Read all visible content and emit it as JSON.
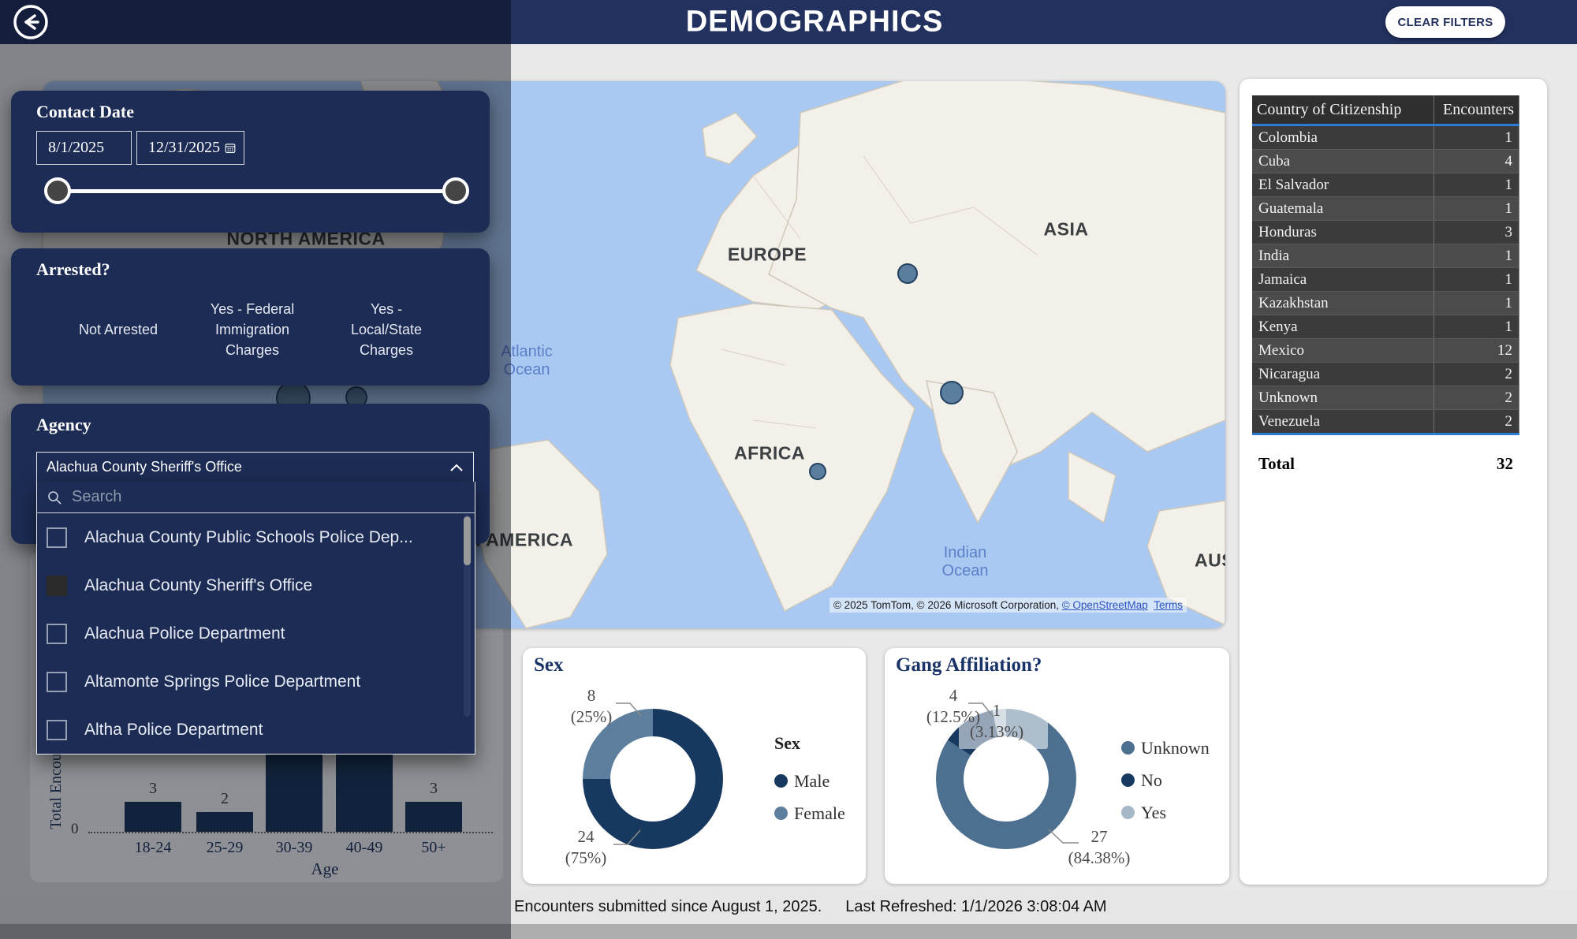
{
  "header": {
    "title": "DEMOGRAPHICS",
    "clear_filters_label": "CLEAR FILTERS"
  },
  "filters": {
    "contact_date": {
      "title": "Contact Date",
      "start": "8/1/2025",
      "end": "12/31/2025"
    },
    "arrested": {
      "title": "Arrested?",
      "options": [
        "Not Arrested",
        "Yes - Federal Immigration Charges",
        "Yes - Local/State Charges"
      ]
    },
    "agency": {
      "title": "Agency",
      "selected": "Alachua County Sheriff's Office",
      "search_placeholder": "Search",
      "options": [
        {
          "label": "Alachua County Public Schools Police Dep...",
          "checked": false
        },
        {
          "label": "Alachua County Sheriff's Office",
          "checked": true
        },
        {
          "label": "Alachua Police Department",
          "checked": false
        },
        {
          "label": "Altamonte Springs Police Department",
          "checked": false
        },
        {
          "label": "Altha Police Department",
          "checked": false
        }
      ]
    }
  },
  "map": {
    "labels": {
      "north_america": "NORTH AMERICA",
      "europe": "EUROPE",
      "asia": "ASIA",
      "africa": "AFRICA",
      "south_america": "SOUTH AMERICA",
      "australia": "AUSTRALIA",
      "atlantic": "Atlantic\nOcean",
      "indian": "Indian\nOcean"
    },
    "bubbles": [
      {
        "area": "central-asia",
        "r": 11,
        "dimmed": false
      },
      {
        "area": "south-asia",
        "r": 13,
        "dimmed": false
      },
      {
        "area": "east-africa",
        "r": 9,
        "dimmed": false
      },
      {
        "area": "americas-1",
        "r": 20,
        "dimmed": true
      },
      {
        "area": "americas-2",
        "r": 12,
        "dimmed": true
      },
      {
        "area": "americas-3",
        "r": 6,
        "dimmed": true
      }
    ],
    "attribution": {
      "text": "© 2025 TomTom, © 2026 Microsoft Corporation, ",
      "osm_link": "© OpenStreetMap",
      "terms_link": "Terms"
    }
  },
  "footer": {
    "status": "Encounters submitted since August 1, 2025.",
    "refreshed": "Last Refreshed: 1/1/2026 3:08:04 AM"
  },
  "colors": {
    "header_navy": "#22315e",
    "card_navy": "#1d2c55",
    "table_accent_blue": "#2e7bd6"
  },
  "chart_data": [
    {
      "id": "age",
      "type": "bar",
      "title": "",
      "xlabel": "Age",
      "ylabel": "Total Encounters",
      "origin_label": "0",
      "categories": [
        "18-24",
        "25-29",
        "30-39",
        "40-49",
        "50+"
      ],
      "values": [
        3,
        2,
        null,
        null,
        3
      ],
      "note": "30-39 and 40-49 bar tops and value labels are hidden behind the open Agency dropdown",
      "grid": "dotted-baseline-only",
      "legend_position": "none"
    },
    {
      "id": "sex",
      "type": "donut",
      "title": "Sex",
      "legend_title": "Sex",
      "legend_position": "right",
      "series": [
        {
          "name": "Male",
          "value": 24,
          "pct_label": "(75%)",
          "color": "#17395f"
        },
        {
          "name": "Female",
          "value": 8,
          "pct_label": "(25%)",
          "color": "#5d7f9d"
        }
      ]
    },
    {
      "id": "gang",
      "type": "donut",
      "title": "Gang Affiliation?",
      "legend_title": "",
      "legend_position": "right",
      "series": [
        {
          "name": "Unknown",
          "value": 27,
          "pct_label": "(84.38%)",
          "color": "#4e7090"
        },
        {
          "name": "No",
          "value": 4,
          "pct_label": "(12.5%)",
          "color": "#17395f"
        },
        {
          "name": "Yes",
          "value": 1,
          "pct_label": "(3.13%)",
          "color": "#a6b8c7"
        }
      ]
    },
    {
      "id": "citizenship",
      "type": "table",
      "columns": [
        "Country of Citizenship",
        "Encounters"
      ],
      "rows": [
        [
          "Colombia",
          1
        ],
        [
          "Cuba",
          4
        ],
        [
          "El Salvador",
          1
        ],
        [
          "Guatemala",
          1
        ],
        [
          "Honduras",
          3
        ],
        [
          "India",
          1
        ],
        [
          "Jamaica",
          1
        ],
        [
          "Kazakhstan",
          1
        ],
        [
          "Kenya",
          1
        ],
        [
          "Mexico",
          12
        ],
        [
          "Nicaragua",
          2
        ],
        [
          "Unknown",
          2
        ],
        [
          "Venezuela",
          2
        ]
      ],
      "total_label": "Total",
      "total_value": 32
    }
  ]
}
